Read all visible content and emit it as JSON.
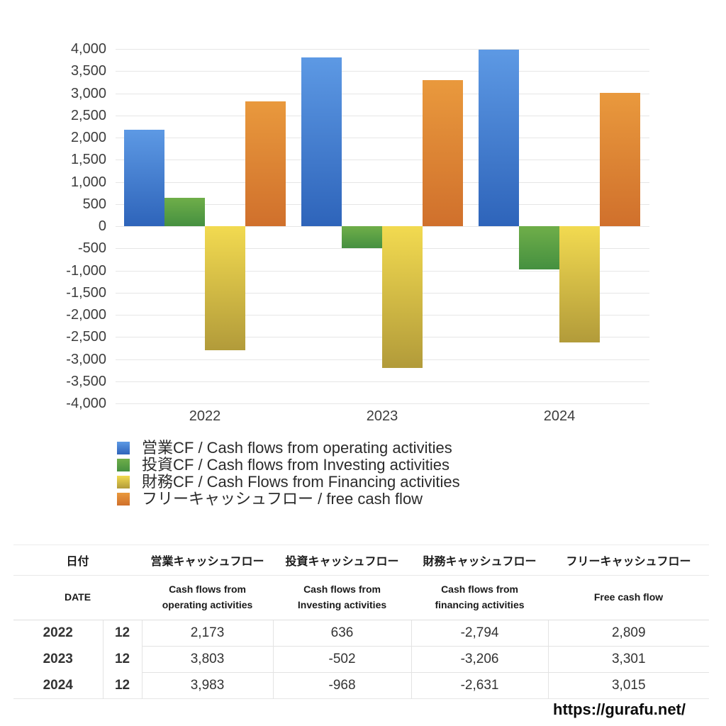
{
  "chart_data": {
    "type": "bar",
    "title": "",
    "categories": [
      "2022",
      "2023",
      "2024"
    ],
    "series": [
      {
        "name": "営業CF / Cash flows from operating activities",
        "key": "operating-cf",
        "values": [
          2173,
          3803,
          3983
        ],
        "color_top": "#5d99e4",
        "color_bottom": "#2e64ba"
      },
      {
        "name": "投資CF / Cash flows from Investing activities",
        "key": "investing-cf",
        "values": [
          636,
          -502,
          -968
        ],
        "color_top": "#6fae49",
        "color_bottom": "#459040"
      },
      {
        "name": "財務CF / Cash Flows from Financing activities",
        "key": "financing-cf",
        "values": [
          -2794,
          -3206,
          -2631
        ],
        "color_top": "#f2da50",
        "color_bottom": "#b29b3a"
      },
      {
        "name": "フリーキャッシュフロー / free cash flow",
        "key": "free-cash-flow",
        "values": [
          2809,
          3301,
          3015
        ],
        "color_top": "#e9993d",
        "color_bottom": "#d0702c"
      }
    ],
    "xlabel": "",
    "ylabel": "",
    "ylim": [
      -4000,
      4000
    ],
    "ytick_step": 500,
    "grid": true,
    "legend_position": "bottom"
  },
  "table": {
    "header_jp": [
      "日付",
      "営業キャッシュフロー",
      "投資キャッシュフロー",
      "財務キャッシュフロー",
      "フリーキャッシュフロー"
    ],
    "header_en": [
      [
        "DATE"
      ],
      [
        "Cash flows from",
        "operating activities"
      ],
      [
        "Cash flows from",
        "Investing activities"
      ],
      [
        "Cash flows from",
        "financing activities"
      ],
      [
        "Free cash flow"
      ]
    ],
    "rows": [
      {
        "year": "2022",
        "month": "12",
        "values": [
          "2,173",
          "636",
          "-2,794",
          "2,809"
        ]
      },
      {
        "year": "2023",
        "month": "12",
        "values": [
          "3,803",
          "-502",
          "-3,206",
          "3,301"
        ]
      },
      {
        "year": "2024",
        "month": "12",
        "values": [
          "3,983",
          "-968",
          "-2,631",
          "3,015"
        ]
      }
    ]
  },
  "footer": {
    "url": "https://gurafu.net/"
  },
  "colors": {
    "negative_text": "#c9473b",
    "gridline": "#e6e6e6",
    "axis_text": "#3d3d3d"
  }
}
